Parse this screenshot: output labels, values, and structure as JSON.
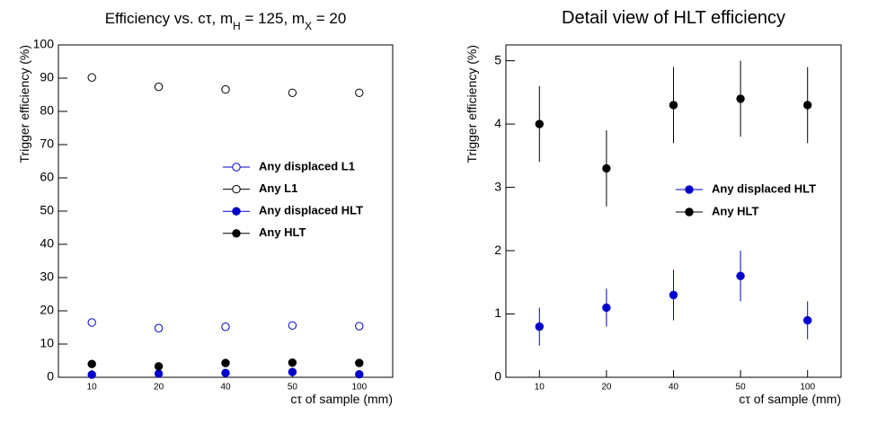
{
  "chart_data": [
    {
      "type": "scatter",
      "title": [
        "Efficiency vs. cτ, m",
        "H",
        " = 125, m",
        "X",
        " = 20"
      ],
      "x_label": "cτ of sample (mm)",
      "y_label": "Trigger efficiency (%)",
      "categories": [
        "10",
        "20",
        "40",
        "50",
        "100"
      ],
      "ylim": [
        0,
        100
      ],
      "yticks": [
        0,
        10,
        20,
        30,
        40,
        50,
        60,
        70,
        80,
        90,
        100
      ],
      "series": [
        {
          "name": "Any displaced L1",
          "color": "#0000cc",
          "marker": "open",
          "values": [
            16.5,
            14.8,
            15.2,
            15.6,
            15.4
          ]
        },
        {
          "name": "Any L1",
          "color": "#000000",
          "marker": "open",
          "values": [
            90.2,
            87.4,
            86.6,
            85.6,
            85.6
          ]
        },
        {
          "name": "Any displaced HLT",
          "color": "#0000cc",
          "marker": "filled",
          "values": [
            0.8,
            1.1,
            1.3,
            1.6,
            0.9
          ]
        },
        {
          "name": "Any HLT",
          "color": "#000000",
          "marker": "filled",
          "values": [
            4.0,
            3.3,
            4.3,
            4.4,
            4.3
          ]
        }
      ]
    },
    {
      "type": "errorbar",
      "title": [
        "Detail view of HLT efficiency"
      ],
      "x_label": "cτ of sample (mm)",
      "y_label": "Trigger efficiency (%)",
      "categories": [
        "10",
        "20",
        "40",
        "50",
        "100"
      ],
      "ylim": [
        0,
        5.25
      ],
      "yticks": [
        0,
        1,
        2,
        3,
        4,
        5
      ],
      "series": [
        {
          "name": "Any displaced HLT",
          "color": "#0000cc",
          "marker": "filled",
          "values": [
            0.8,
            1.1,
            1.3,
            1.6,
            0.9
          ],
          "errors": [
            0.3,
            0.3,
            0.4,
            0.4,
            0.3
          ]
        },
        {
          "name": "Any HLT",
          "color": "#000000",
          "marker": "filled",
          "values": [
            4.0,
            3.3,
            4.3,
            4.4,
            4.3
          ],
          "errors": [
            0.6,
            0.6,
            0.6,
            0.6,
            0.6
          ]
        }
      ]
    }
  ]
}
